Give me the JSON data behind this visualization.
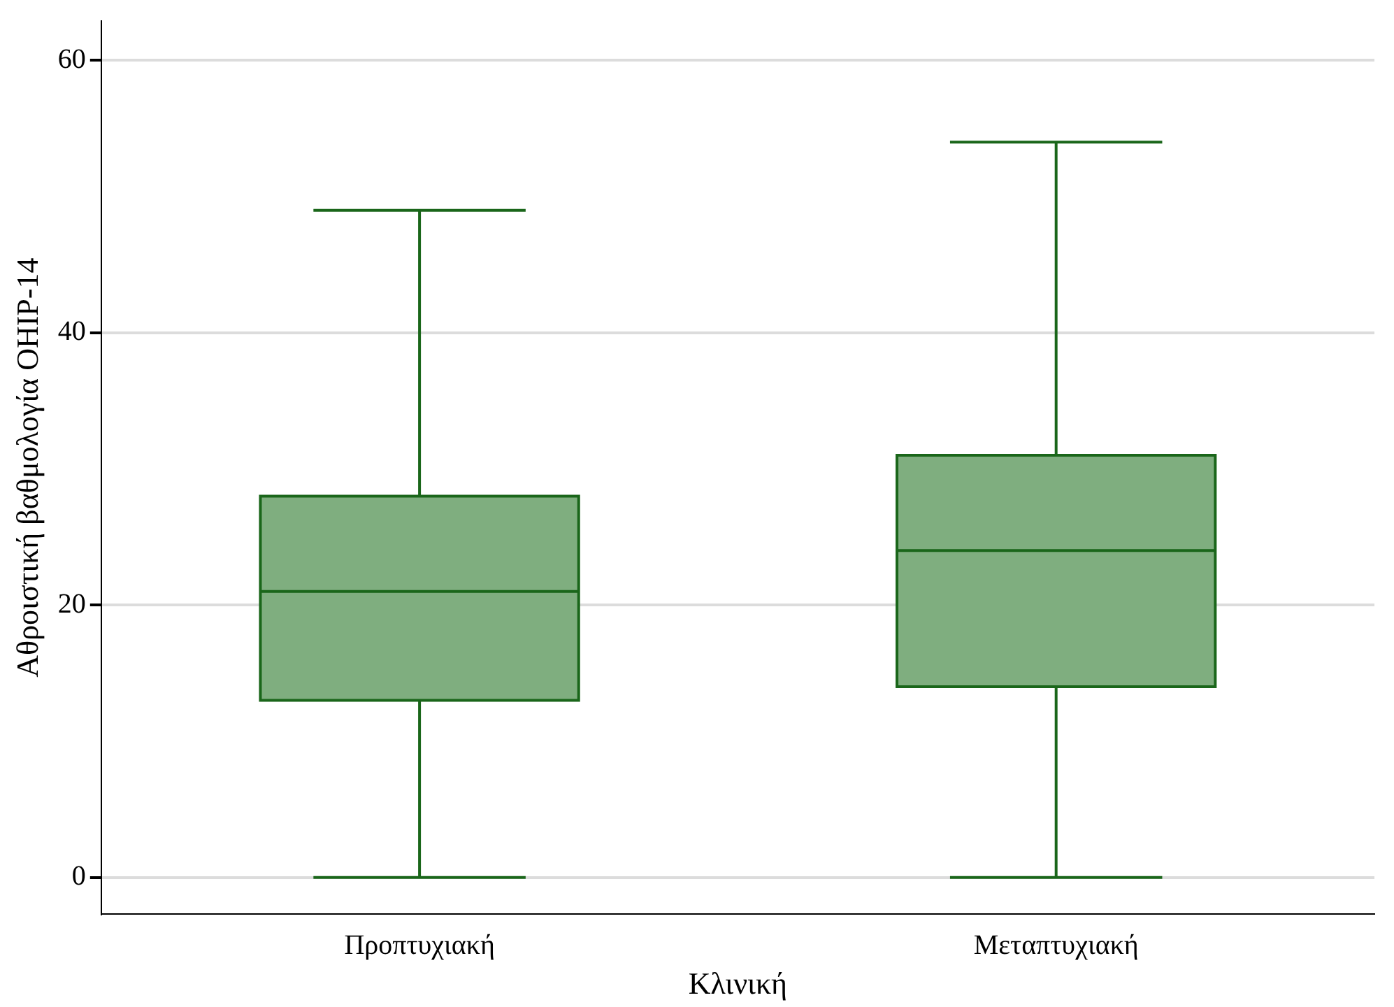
{
  "chart_data": {
    "type": "box",
    "xlabel": "Κλινική",
    "ylabel": "Αθροιστική βαθμολογία OHIP-14",
    "categories": [
      "Προπτυχιακή",
      "Μεταπτυχιακή"
    ],
    "series": [
      {
        "color": "#7fae7f",
        "boxes": [
          {
            "low": 0,
            "q1": 13,
            "median": 21,
            "q3": 28,
            "high": 49
          },
          {
            "low": 0,
            "q1": 14,
            "median": 24,
            "q3": 31,
            "high": 54
          }
        ]
      }
    ],
    "ylim": [
      -2.7,
      62.9
    ],
    "yticks": [
      0,
      20,
      40,
      60
    ],
    "grid": "y",
    "legend": false
  }
}
